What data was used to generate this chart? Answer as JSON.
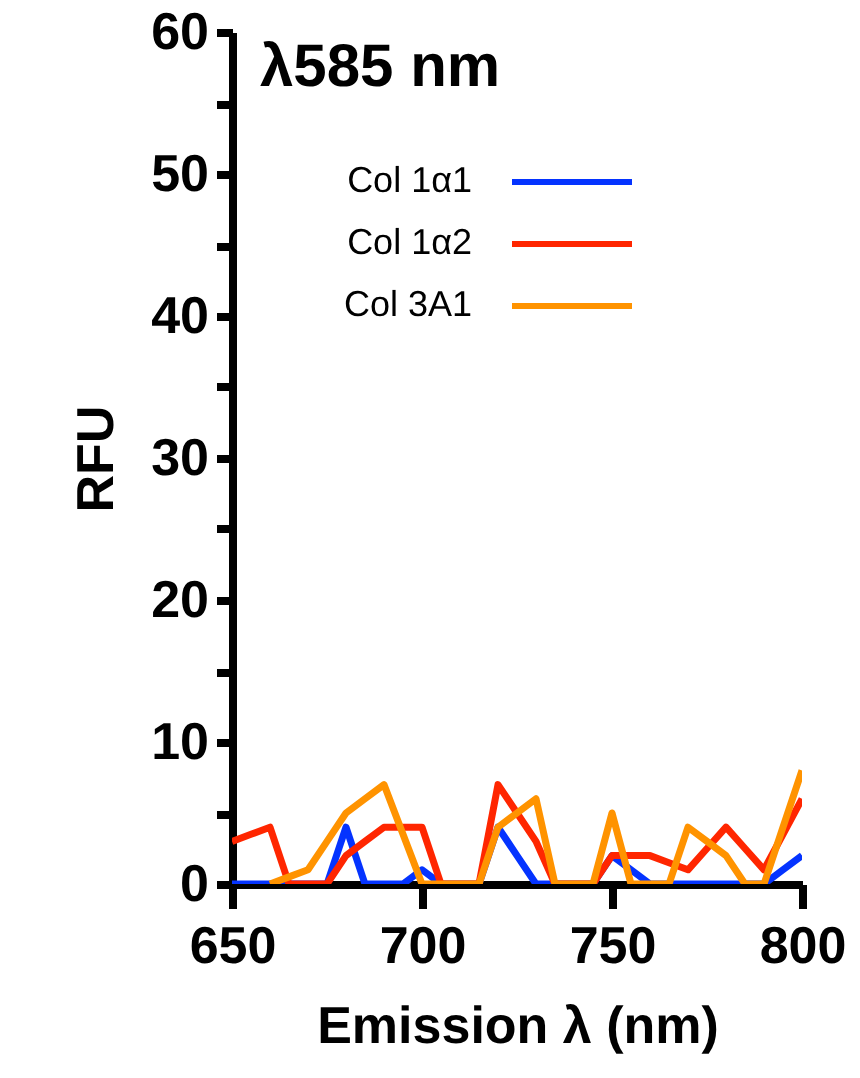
{
  "chart_data": {
    "type": "line",
    "title": "λ585 nm",
    "xlabel": "Emission λ (nm)",
    "ylabel": "RFU",
    "x": [
      650,
      655,
      660,
      665,
      670,
      675,
      680,
      685,
      690,
      695,
      700,
      705,
      710,
      715,
      720,
      725,
      730,
      735,
      740,
      745,
      750,
      755,
      760,
      765,
      770,
      775,
      780,
      785,
      790,
      795,
      800
    ],
    "series": [
      {
        "name": "Col 1α1",
        "color": "#0433ff",
        "values": [
          0,
          0,
          0,
          0,
          0,
          0,
          4,
          0,
          0,
          0,
          1,
          0,
          0,
          0,
          4,
          2,
          0,
          0,
          0,
          0,
          2,
          1,
          0,
          0,
          0,
          0,
          0,
          0,
          0,
          1,
          2
        ]
      },
      {
        "name": "Col 1α2",
        "color": "#ff2600",
        "values": [
          3,
          3.5,
          4,
          0,
          0,
          0,
          2,
          3,
          4,
          4,
          4,
          0,
          0,
          0,
          7,
          5,
          3,
          0,
          0,
          0,
          2,
          2,
          2,
          1.5,
          1,
          2.5,
          4,
          2.5,
          1,
          3.5,
          6
        ]
      },
      {
        "name": "Col 3A1",
        "color": "#ff9300",
        "values": [
          null,
          null,
          0,
          0.5,
          1,
          3,
          5,
          6,
          7,
          3.5,
          0,
          0,
          0,
          0,
          4,
          5,
          6,
          0,
          0,
          0,
          5,
          0,
          0,
          0,
          4,
          3,
          2,
          0,
          0,
          4,
          8
        ]
      }
    ],
    "xlim": [
      650,
      800
    ],
    "xticks": [
      650,
      700,
      750,
      800
    ],
    "ylim": [
      0,
      60
    ],
    "yticks": [
      0,
      {
        "value": 5,
        "label": null
      },
      10,
      {
        "value": 15,
        "label": null
      },
      20,
      {
        "value": 25,
        "label": null
      },
      30,
      {
        "value": 35,
        "label": null
      },
      40,
      {
        "value": 45,
        "label": null
      },
      50,
      {
        "value": 55,
        "label": null
      },
      60
    ],
    "legend": "top left",
    "grid": false,
    "marker": "none",
    "line_style": "solid"
  }
}
